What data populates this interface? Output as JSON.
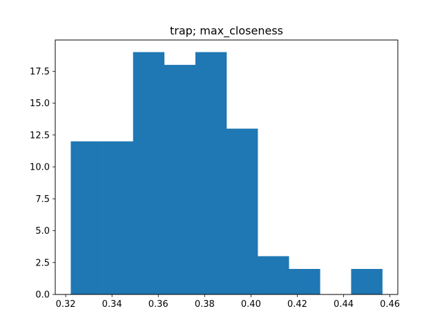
{
  "chart_data": {
    "type": "bar",
    "title": "trap; max_closeness",
    "xlabel": "",
    "ylabel": "",
    "bin_edges": [
      0.3222,
      0.33565,
      0.3491,
      0.36255,
      0.376,
      0.38945,
      0.4029,
      0.41635,
      0.4298,
      0.44325,
      0.4567
    ],
    "values": [
      12,
      12,
      19,
      18,
      19,
      13,
      3,
      2,
      0,
      2
    ],
    "xlim": [
      0.3155,
      0.4634
    ],
    "ylim": [
      0,
      19.95
    ],
    "x_ticks": [
      0.32,
      0.34,
      0.36,
      0.38,
      0.4,
      0.42,
      0.44,
      0.46
    ],
    "x_tick_labels": [
      "0.32",
      "0.34",
      "0.36",
      "0.38",
      "0.40",
      "0.42",
      "0.44",
      "0.46"
    ],
    "y_ticks": [
      0,
      2.5,
      5,
      7.5,
      10,
      12.5,
      15,
      17.5
    ],
    "y_tick_labels": [
      "0.0",
      "2.5",
      "5.0",
      "7.5",
      "10.0",
      "12.5",
      "15.0",
      "17.5"
    ],
    "bar_color": "#1f77b4",
    "grid": false
  }
}
